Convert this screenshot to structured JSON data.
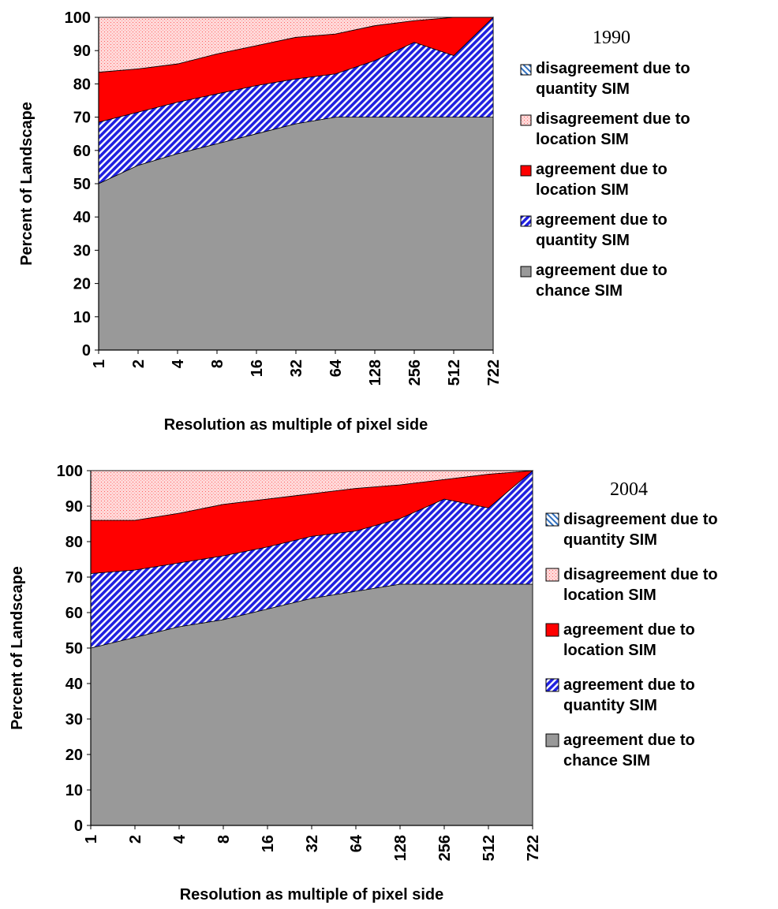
{
  "colors": {
    "chance": "#999999",
    "quantity": "#2020e0",
    "location_agreement": "#ff0000",
    "location_disagreement": "#ffd8d8",
    "quantity_disagreement": "#3070c0"
  },
  "chart_data": [
    {
      "type": "area",
      "stacked": true,
      "title": "1990",
      "xlabel": "Resolution as multiple of pixel side",
      "ylabel": "Percent of Landscape",
      "ylim": [
        0,
        100
      ],
      "yticks": [
        "0",
        "10",
        "20",
        "30",
        "40",
        "50",
        "60",
        "70",
        "80",
        "90",
        "100"
      ],
      "categories": [
        "1",
        "2",
        "4",
        "8",
        "16",
        "32",
        "64",
        "128",
        "256",
        "512",
        "722"
      ],
      "series": [
        {
          "key": "chance",
          "name": "agreement due to chance SIM",
          "values": [
            50,
            55.5,
            59,
            62,
            65,
            68,
            70,
            70,
            70,
            70,
            70
          ]
        },
        {
          "key": "quantity",
          "name": "agreement due to quantity SIM",
          "values": [
            18.5,
            16,
            15.5,
            15,
            14.5,
            13.5,
            13,
            17,
            22.5,
            18.5,
            30
          ]
        },
        {
          "key": "location_agreement",
          "name": "agreement due to location SIM",
          "values": [
            15,
            13,
            11.5,
            12,
            12,
            12.5,
            12,
            10.5,
            6.5,
            11.5,
            0
          ]
        },
        {
          "key": "location_disagreement",
          "name": "disagreement due to location SIM",
          "values": [
            16.5,
            15.5,
            14,
            11,
            8.5,
            6,
            5,
            2.5,
            1,
            0,
            0
          ]
        },
        {
          "key": "quantity_disagreement",
          "name": "disagreement due to quantity SIM",
          "values": [
            0,
            0,
            0,
            0,
            0,
            0,
            0,
            0,
            0,
            0,
            0
          ]
        }
      ],
      "legend_order": [
        "quantity_disagreement",
        "location_disagreement",
        "location_agreement",
        "quantity",
        "chance"
      ],
      "legend": [
        [
          "disagreement due to",
          "quantity SIM"
        ],
        [
          "disagreement due to",
          "location SIM"
        ],
        [
          "agreement due to",
          "location SIM"
        ],
        [
          "agreement due to",
          "quantity SIM"
        ],
        [
          "agreement due to",
          "chance SIM"
        ]
      ],
      "legend_position": "right",
      "grid": false
    },
    {
      "type": "area",
      "stacked": true,
      "title": "2004",
      "xlabel": "Resolution as multiple of pixel side",
      "ylabel": "Percent of Landscape",
      "ylim": [
        0,
        100
      ],
      "yticks": [
        "0",
        "10",
        "20",
        "30",
        "40",
        "50",
        "60",
        "70",
        "80",
        "90",
        "100"
      ],
      "categories": [
        "1",
        "2",
        "4",
        "8",
        "16",
        "32",
        "64",
        "128",
        "256",
        "512",
        "722"
      ],
      "series": [
        {
          "key": "chance",
          "name": "agreement due to chance SIM",
          "values": [
            50,
            53,
            56,
            58,
            61,
            64,
            66,
            68,
            68,
            68,
            68
          ]
        },
        {
          "key": "quantity",
          "name": "agreement due to quantity SIM",
          "values": [
            21,
            19,
            18,
            18,
            17.5,
            17.5,
            17,
            18.5,
            24,
            21.5,
            32
          ]
        },
        {
          "key": "location_agreement",
          "name": "agreement due to location SIM",
          "values": [
            15,
            14,
            14,
            14.5,
            13.5,
            12,
            12,
            9.5,
            5.5,
            9.5,
            0
          ]
        },
        {
          "key": "location_disagreement",
          "name": "disagreement due to location SIM",
          "values": [
            14,
            14,
            12,
            9.5,
            8,
            6.5,
            5,
            4,
            2.5,
            1,
            0
          ]
        },
        {
          "key": "quantity_disagreement",
          "name": "disagreement due to quantity SIM",
          "values": [
            0,
            0,
            0,
            0,
            0,
            0,
            0,
            0,
            0,
            0,
            0
          ]
        }
      ],
      "legend_order": [
        "quantity_disagreement",
        "location_disagreement",
        "location_agreement",
        "quantity",
        "chance"
      ],
      "legend": [
        [
          "disagreement due to",
          "quantity SIM"
        ],
        [
          "disagreement due to",
          "location SIM"
        ],
        [
          "agreement due to",
          "location SIM"
        ],
        [
          "agreement due to",
          "quantity SIM"
        ],
        [
          "agreement due to",
          "chance SIM"
        ]
      ],
      "legend_position": "right",
      "grid": false
    }
  ]
}
